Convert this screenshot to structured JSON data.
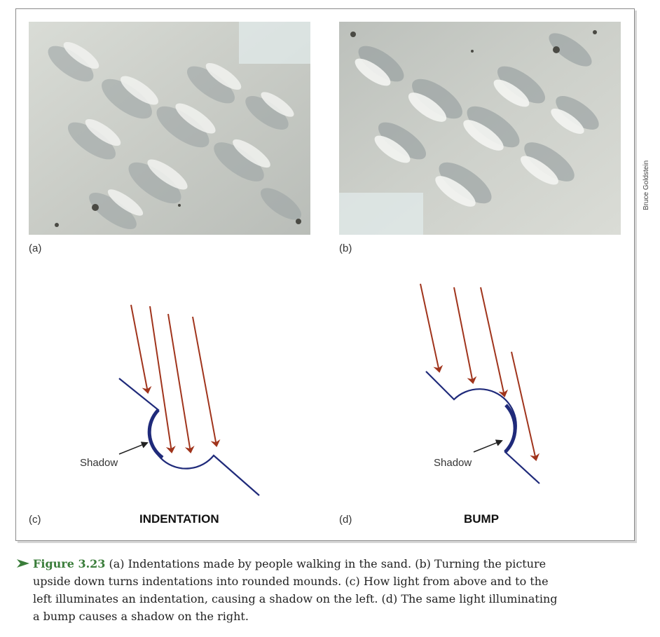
{
  "panels": {
    "a": {
      "label": "(a)"
    },
    "b": {
      "label": "(b)"
    },
    "c": {
      "label": "(c)",
      "title": "INDENTATION",
      "shadow_label": "Shadow"
    },
    "d": {
      "label": "(d)",
      "title": "BUMP",
      "shadow_label": "Shadow"
    }
  },
  "credit": "Bruce Goldstein",
  "colors": {
    "arrow": "#a0341c",
    "surface": "#1f2a7a",
    "caption_figure_label": "#3a7d3a",
    "frame_border": "#8a8a8a"
  },
  "caption": {
    "figure_label": "Figure 3.23",
    "lines": [
      "(a) Indentations made by people walking in the sand. (b) Turning the picture",
      "upside down turns indentations into rounded mounds. (c) How light from above and to the",
      "left illuminates an indentation, causing a shadow on the left. (d) The same light illuminating",
      "a bump causes a shadow on the right."
    ]
  }
}
